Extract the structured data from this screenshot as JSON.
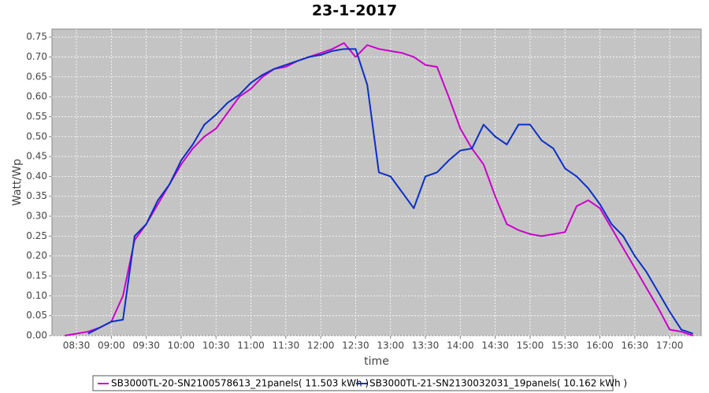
{
  "chart_data": {
    "type": "line",
    "title": "23-1-2017",
    "x_label": "time",
    "y_label": "Watt/Wp",
    "x": [
      "08:20",
      "08:30",
      "08:40",
      "08:50",
      "09:00",
      "09:10",
      "09:20",
      "09:30",
      "09:40",
      "09:50",
      "10:00",
      "10:10",
      "10:20",
      "10:30",
      "10:40",
      "10:50",
      "11:00",
      "11:10",
      "11:20",
      "11:30",
      "11:40",
      "11:50",
      "12:00",
      "12:10",
      "12:20",
      "12:30",
      "12:40",
      "12:50",
      "13:00",
      "13:10",
      "13:20",
      "13:30",
      "13:40",
      "13:50",
      "14:00",
      "14:10",
      "14:20",
      "14:30",
      "14:40",
      "14:50",
      "15:00",
      "15:10",
      "15:20",
      "15:30",
      "15:40",
      "15:50",
      "16:00",
      "16:10",
      "16:20",
      "16:30",
      "16:40",
      "16:50",
      "17:00",
      "17:10",
      "17:20"
    ],
    "series": [
      {
        "name": "SB3000TL-20-SN2100578613_21panels( 11.503 kWh )",
        "color": "#cc00cc",
        "values": [
          0.0,
          0.005,
          0.01,
          0.02,
          0.035,
          0.1,
          0.24,
          0.28,
          0.33,
          0.38,
          0.43,
          0.47,
          0.5,
          0.52,
          0.56,
          0.6,
          0.62,
          0.65,
          0.67,
          0.675,
          0.69,
          0.7,
          0.71,
          0.72,
          0.735,
          0.7,
          0.73,
          0.72,
          0.715,
          0.71,
          0.7,
          0.68,
          0.675,
          0.6,
          0.52,
          0.47,
          0.43,
          0.35,
          0.28,
          0.265,
          0.255,
          0.25,
          0.255,
          0.26,
          0.325,
          0.34,
          0.32,
          0.27,
          0.22,
          0.17,
          0.12,
          0.07,
          0.015,
          0.01,
          0.0
        ]
      },
      {
        "name": "SB3000TL-21-SN2130032031_19panels( 10.162 kWh )",
        "color": "#0a2fc8",
        "values": [
          null,
          null,
          0.005,
          0.02,
          0.035,
          0.04,
          0.25,
          0.28,
          0.34,
          0.38,
          0.44,
          0.48,
          0.53,
          0.555,
          0.585,
          0.605,
          0.635,
          0.655,
          0.67,
          0.68,
          0.69,
          0.7,
          0.705,
          0.715,
          0.72,
          0.72,
          0.63,
          0.41,
          0.4,
          0.36,
          0.32,
          0.4,
          0.41,
          0.44,
          0.465,
          0.47,
          0.53,
          0.5,
          0.48,
          0.53,
          0.53,
          0.49,
          0.47,
          0.42,
          0.4,
          0.37,
          0.33,
          0.28,
          0.25,
          0.2,
          0.16,
          0.11,
          0.06,
          0.015,
          0.005
        ]
      }
    ],
    "xlim": [
      "08:09",
      "17:27"
    ],
    "xticks": [
      "08:30",
      "09:00",
      "09:30",
      "10:00",
      "10:30",
      "11:00",
      "11:30",
      "12:00",
      "12:30",
      "13:00",
      "13:30",
      "14:00",
      "14:30",
      "15:00",
      "15:30",
      "16:00",
      "16:30",
      "17:00"
    ],
    "ylim": [
      0,
      0.77
    ],
    "yticks": [
      {
        "value": 0,
        "label": "0.00"
      },
      0.05,
      {
        "value": 0.1,
        "label": "0.10"
      },
      0.15,
      {
        "value": 0.2,
        "label": "0.20"
      },
      0.25,
      {
        "value": 0.3,
        "label": "0.30"
      },
      0.35,
      {
        "value": 0.4,
        "label": "0.40"
      },
      0.45,
      {
        "value": 0.5,
        "label": "0.50"
      },
      0.55,
      {
        "value": 0.6,
        "label": "0.60"
      },
      0.65,
      {
        "value": 0.7,
        "label": "0.70"
      },
      0.75
    ],
    "grid": true,
    "legend": "bottom"
  }
}
